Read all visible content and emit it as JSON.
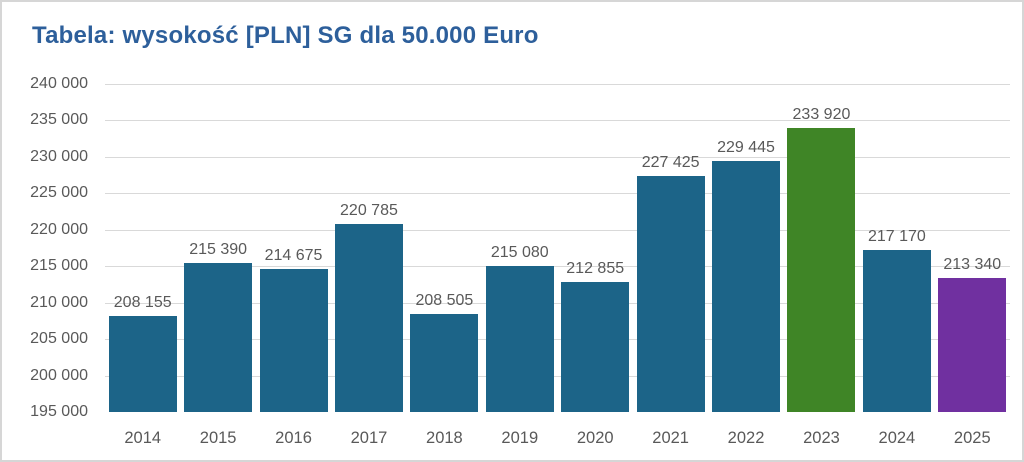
{
  "title": "Tabela: wysokość [PLN] SG dla 50.000 Euro",
  "chart_data": {
    "type": "bar",
    "title": "Tabela: wysokość [PLN] SG dla 50.000 Euro",
    "xlabel": "",
    "ylabel": "",
    "categories": [
      "2014",
      "2015",
      "2016",
      "2017",
      "2018",
      "2019",
      "2020",
      "2021",
      "2022",
      "2023",
      "2024",
      "2025"
    ],
    "values": [
      208155,
      215390,
      214675,
      220785,
      208505,
      215080,
      212855,
      227425,
      229445,
      233920,
      217170,
      213340
    ],
    "value_labels": [
      "208 155",
      "215 390",
      "214 675",
      "220 785",
      "208 505",
      "215 080",
      "212 855",
      "227 425",
      "229 445",
      "233 920",
      "217 170",
      "213 340"
    ],
    "bar_colors": [
      "#1c6488",
      "#1c6488",
      "#1c6488",
      "#1c6488",
      "#1c6488",
      "#1c6488",
      "#1c6488",
      "#1c6488",
      "#1c6488",
      "#3f8526",
      "#1c6488",
      "#7030a0"
    ],
    "ylim": [
      195000,
      240000
    ],
    "ytick_step": 5000,
    "ytick_labels": [
      "240 000",
      "235 000",
      "230 000",
      "225 000",
      "220 000",
      "215 000",
      "210 000",
      "205 000",
      "200 000",
      "195 000"
    ],
    "grid": "horizontal",
    "legend": "none",
    "colors": {
      "bar_default": "#1c6488",
      "bar_highlight_2023": "#3f8526",
      "bar_highlight_2025": "#7030a0",
      "title_text": "#2d5f9b",
      "axis_text": "#595959",
      "gridline": "#d9d9d9",
      "frame_border": "#d6d6d6",
      "background": "#ffffff"
    }
  }
}
